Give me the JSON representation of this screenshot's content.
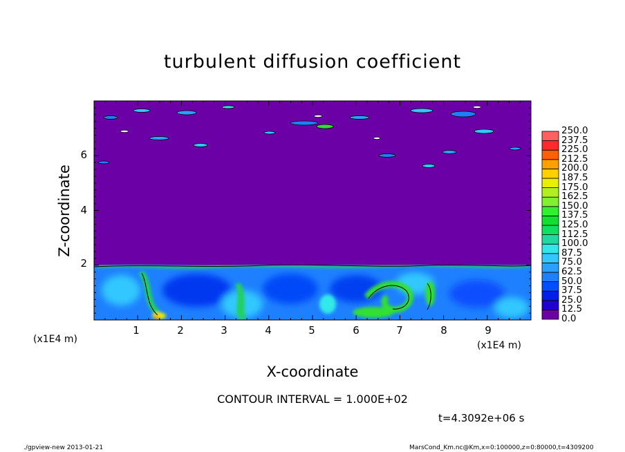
{
  "chart_data": {
    "type": "heatmap",
    "title": "turbulent diffusion coefficient",
    "xlabel": "X-coordinate",
    "ylabel": "Z-coordinate",
    "x_unit": "(x1E4 m)",
    "y_unit": "(x1E4 m)",
    "xlim": [
      0,
      10
    ],
    "ylim": [
      0,
      8
    ],
    "x_ticks": [
      "1",
      "2",
      "3",
      "4",
      "5",
      "6",
      "7",
      "8",
      "9"
    ],
    "y_ticks": [
      "2",
      "4",
      "6"
    ],
    "colorbar": {
      "levels": [
        "0.0",
        "12.5",
        "25.0",
        "37.5",
        "50.0",
        "62.5",
        "75.0",
        "87.5",
        "100.0",
        "112.5",
        "125.0",
        "137.5",
        "150.0",
        "162.5",
        "175.0",
        "187.5",
        "200.0",
        "212.5",
        "225.0",
        "237.5",
        "250.0"
      ],
      "colors": [
        "#6a00a6",
        "#2000d0",
        "#0020e8",
        "#0050ff",
        "#1e80ff",
        "#2aa0ff",
        "#30c8ff",
        "#30e8e8",
        "#20d8a0",
        "#10e060",
        "#10e030",
        "#30f030",
        "#80f030",
        "#b0f020",
        "#e8f000",
        "#ffd000",
        "#ffa000",
        "#ff6000",
        "#ff2a2a",
        "#ff6060"
      ]
    },
    "contour_interval": "CONTOUR INTERVAL = 1.000E+02",
    "time_label": "t=4.3092e+06 s"
  },
  "footer": {
    "left": "./gpview-new 2013-01-21",
    "right": "MarsCond_Km.nc@Km,x=0:100000,z=0:80000,t=4309200"
  }
}
